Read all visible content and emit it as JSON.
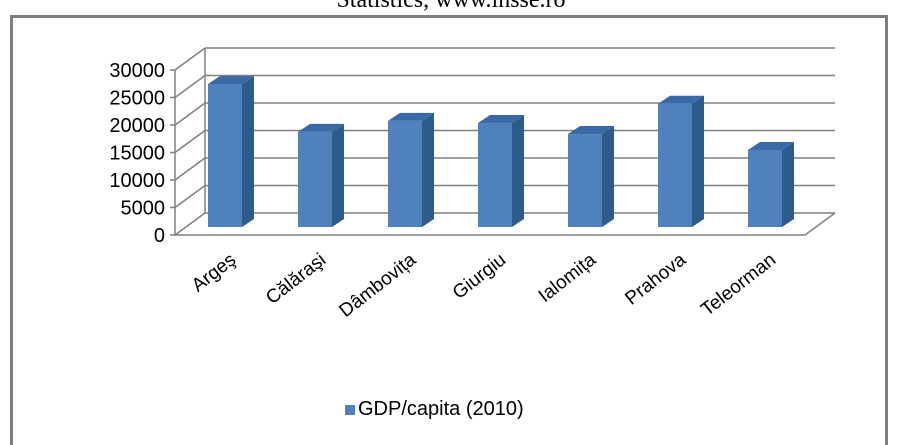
{
  "caption": "Statistics, www.insse.ro",
  "chart_data": {
    "type": "bar",
    "categories": [
      "Argeş",
      "Călăraşi",
      "Dâmbovița",
      "Giurgiu",
      "Ialomița",
      "Prahova",
      "Teleorman"
    ],
    "series": [
      {
        "name": "GDP/capita (2010)",
        "values": [
          26000,
          17300,
          19300,
          18900,
          16900,
          22400,
          14000
        ]
      }
    ],
    "ylim": [
      0,
      30000
    ],
    "yticks": [
      0,
      5000,
      10000,
      15000,
      20000,
      25000,
      30000
    ],
    "grid": true,
    "legend_position": "bottom",
    "bar_color": "#4f81bd",
    "bar_side_color": "#2e5c8a",
    "bar_top_color": "#3a6aa5"
  }
}
